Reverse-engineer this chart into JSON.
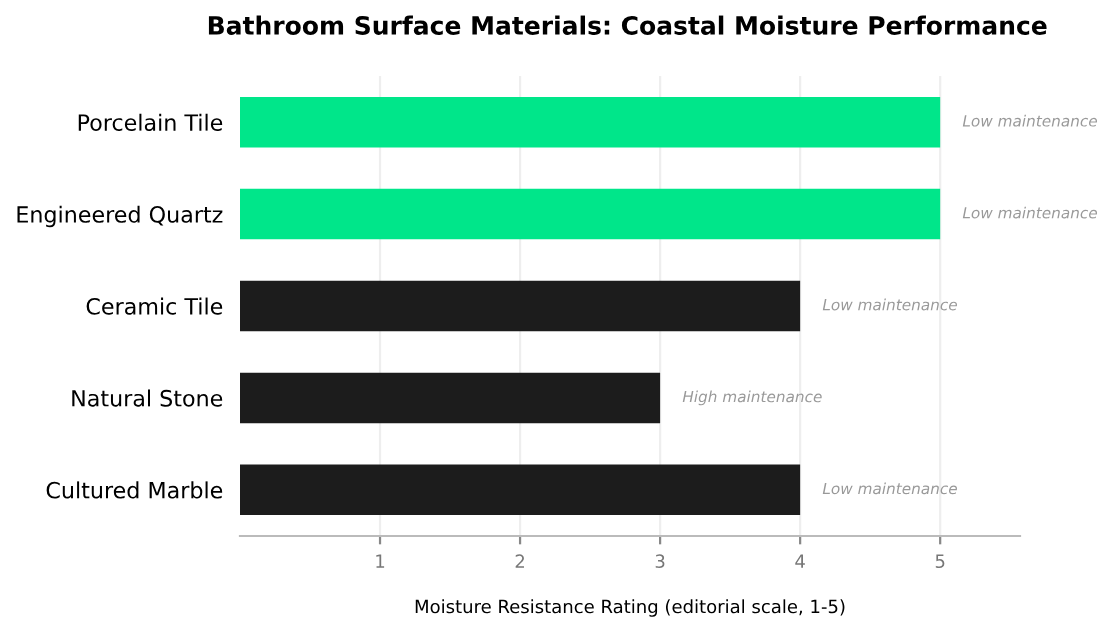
{
  "chart_data": {
    "type": "bar",
    "orientation": "horizontal",
    "title": "Bathroom Surface Materials: Coastal Moisture Performance",
    "xlabel": "Moisture Resistance Rating (editorial scale, 1-5)",
    "categories": [
      "Porcelain Tile",
      "Engineered Quartz",
      "Ceramic Tile",
      "Natural Stone",
      "Cultured Marble"
    ],
    "values": [
      5,
      5,
      4,
      3,
      4
    ],
    "colors": [
      "#00e68a",
      "#00e68a",
      "#1c1c1c",
      "#1c1c1c",
      "#1c1c1c"
    ],
    "xlim": [
      0,
      5.57
    ],
    "xticks": [
      1,
      2,
      3,
      4,
      5
    ],
    "grid": "x",
    "annotations": [
      {
        "text": "Low maintenance",
        "x": 5,
        "y": "Porcelain Tile"
      },
      {
        "text": "Low maintenance",
        "x": 5,
        "y": "Engineered Quartz"
      },
      {
        "text": "Low maintenance",
        "x": 4,
        "y": "Ceramic Tile"
      },
      {
        "text": "High maintenance",
        "x": 3,
        "y": "Natural Stone"
      },
      {
        "text": "Low maintenance",
        "x": 4,
        "y": "Cultured Marble"
      }
    ]
  }
}
